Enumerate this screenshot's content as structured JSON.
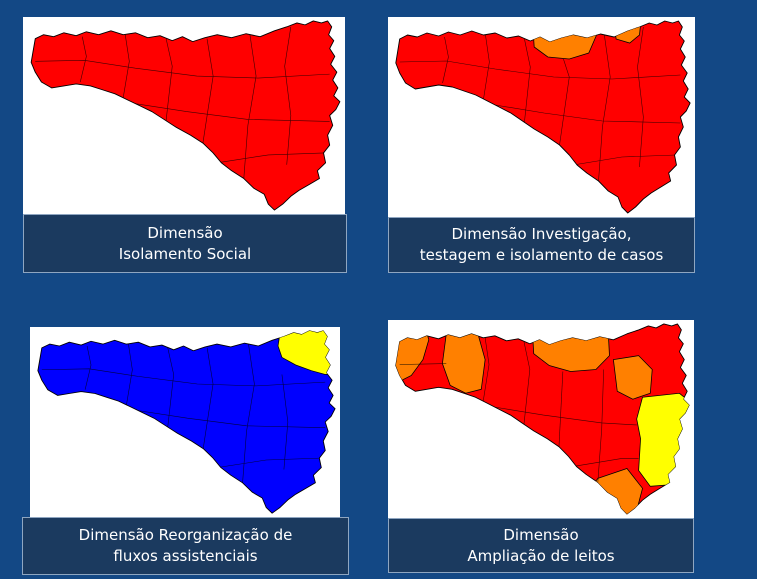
{
  "panels": [
    {
      "caption_line1": "Dimensão",
      "caption_line2": "Isolamento Social",
      "base_color": "#ff0000",
      "regions": [
        "red"
      ]
    },
    {
      "caption_line1": "Dimensão Investigação,",
      "caption_line2": "testagem e isolamento de casos",
      "base_color": "#ff0000",
      "regions": [
        "red",
        "orange"
      ]
    },
    {
      "caption_line1": "Dimensão Reorganização de",
      "caption_line2": "fluxos assistenciais",
      "base_color": "#0000ff",
      "regions": [
        "blue",
        "yellow"
      ]
    },
    {
      "caption_line1": "Dimensão",
      "caption_line2": "Ampliação de leitos",
      "base_color": "#ff0000",
      "regions": [
        "red",
        "orange",
        "yellow"
      ]
    }
  ],
  "colors": {
    "red": "#ff0000",
    "orange": "#ff8000",
    "blue": "#0000ff",
    "yellow": "#ffff00",
    "background": "#134885",
    "caption_bg": "#1b3a5f"
  }
}
